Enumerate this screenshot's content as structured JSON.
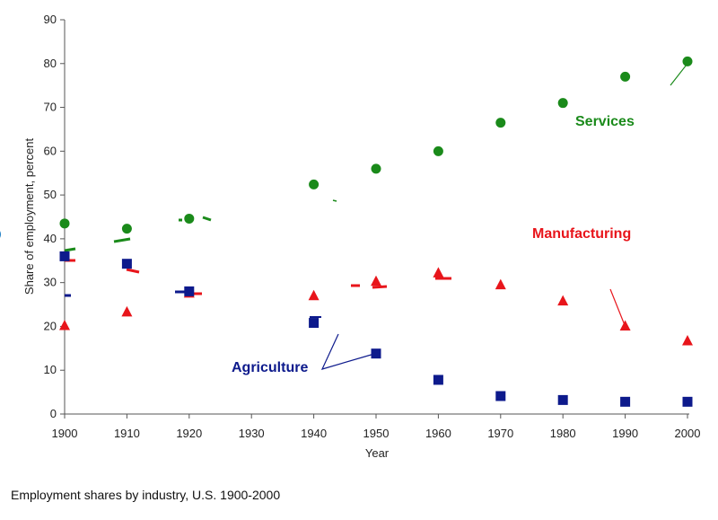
{
  "caption": "Employment shares by industry, U.S. 1900-2000",
  "chart_data": {
    "type": "scatter",
    "xlabel": "Year",
    "ylabel": "Share of employment, percent",
    "xlim": [
      1900,
      2000
    ],
    "ylim": [
      0,
      90
    ],
    "xticks": [
      "1900",
      "1910",
      "1920",
      "1930",
      "1940",
      "1950",
      "1960",
      "1970",
      "1980",
      "1990",
      "2000"
    ],
    "yticks": [
      "0",
      "10",
      "20",
      "30",
      "40",
      "50",
      "60",
      "70",
      "80",
      "90"
    ],
    "grid": false,
    "series": [
      {
        "name": "Services",
        "color": "#1a8a1a",
        "marker": "circle",
        "points": [
          [
            1900,
            43.5
          ],
          [
            1910,
            42.3
          ],
          [
            1920,
            44.6
          ],
          [
            1940,
            52.4
          ],
          [
            1950,
            56
          ],
          [
            1960,
            60
          ],
          [
            1970,
            66.5
          ],
          [
            1980,
            71
          ],
          [
            1990,
            77
          ],
          [
            2000,
            80.5
          ]
        ]
      },
      {
        "name": "Manufacturing",
        "color": "#e8151b",
        "marker": "triangle",
        "points": [
          [
            1900,
            20.2
          ],
          [
            1910,
            23.3
          ],
          [
            1920,
            27.6
          ],
          [
            1940,
            27
          ],
          [
            1950,
            30.3
          ],
          [
            1960,
            32.2
          ],
          [
            1970,
            29.5
          ],
          [
            1980,
            25.8
          ],
          [
            1990,
            20.1
          ],
          [
            2000,
            16.7
          ]
        ]
      },
      {
        "name": "Agriculture",
        "color": "#0d1a8c",
        "marker": "square",
        "points": [
          [
            1900,
            36
          ],
          [
            1910,
            34.3
          ],
          [
            1920,
            28
          ],
          [
            1940,
            20.8
          ],
          [
            1950,
            13.8
          ],
          [
            1960,
            7.8
          ],
          [
            1970,
            4.1
          ],
          [
            1980,
            3.2
          ],
          [
            1990,
            2.8
          ],
          [
            2000,
            2.8
          ]
        ]
      }
    ]
  }
}
